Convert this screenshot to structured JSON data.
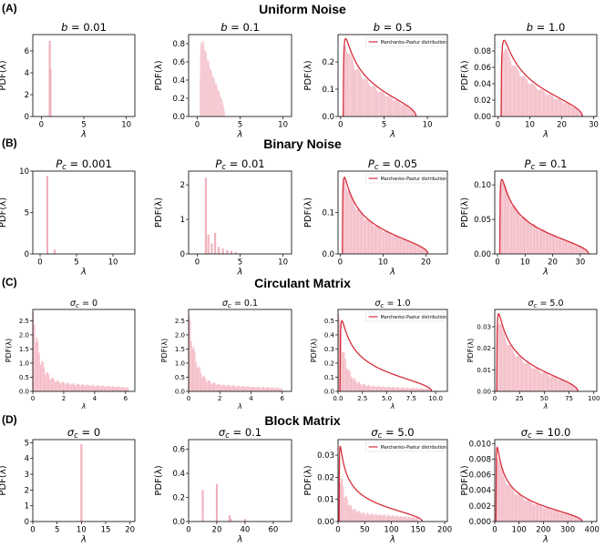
{
  "figure": {
    "rows": [
      {
        "label": "(A)",
        "title": "Uniform Noise"
      },
      {
        "label": "(B)",
        "title": "Binary Noise"
      },
      {
        "label": "(C)",
        "title": "Circulant Matrix"
      },
      {
        "label": "(D)",
        "title": "Block Matrix"
      }
    ]
  },
  "colors": {
    "hist": "#f4b6c2",
    "curve": "#d62d3a",
    "axis": "#000000"
  },
  "chart_data": [
    {
      "type": "bar",
      "row": 0,
      "col": 0,
      "param": "b",
      "value": "0.01",
      "title": "b = 0.01",
      "xlabel": "λ",
      "ylabel": "PDF(λ)",
      "xlim": [
        -1,
        11
      ],
      "ylim": [
        0,
        7.5
      ],
      "xticks": [
        0,
        5,
        10
      ],
      "yticks": [
        0,
        2,
        4,
        6
      ],
      "hist": {
        "kind": "spikes",
        "points": [
          [
            1.0,
            6.9
          ],
          [
            1.08,
            4.3
          ]
        ]
      },
      "mp": null
    },
    {
      "type": "bar",
      "row": 0,
      "col": 1,
      "param": "b",
      "value": "0.1",
      "title": "b = 0.1",
      "xlabel": "λ",
      "ylabel": "PDF(λ)",
      "xlim": [
        -1,
        11
      ],
      "ylim": [
        0,
        0.9
      ],
      "xticks": [
        0,
        5,
        10
      ],
      "yticks": [
        0.0,
        0.2,
        0.4,
        0.6,
        0.8
      ],
      "hist": {
        "kind": "mp",
        "q": 0.5,
        "s2": 1,
        "scale": 1,
        "ymax": 0.86,
        "xmin": 0.3,
        "xmax": 3.2
      },
      "mp": null
    },
    {
      "type": "bar",
      "row": 0,
      "col": 2,
      "param": "b",
      "value": "0.5",
      "title": "b = 0.5",
      "xlabel": "λ",
      "ylabel": "PDF(λ)",
      "xlim": [
        -0.3,
        12.3
      ],
      "ylim": [
        0,
        0.3
      ],
      "xticks": [
        0,
        5,
        10
      ],
      "yticks": [
        0.0,
        0.1,
        0.2
      ],
      "hist": {
        "kind": "mp",
        "q": 0.85,
        "s2": 1,
        "scale": 1,
        "ymax": 0.27,
        "xmin": 0.3,
        "xmax": 8.7
      },
      "mp": {
        "q": 0.85,
        "ymax": 0.285,
        "xmin": 0.3,
        "xmax": 8.7
      },
      "legend": "Marchenko–Pastur distribution"
    },
    {
      "type": "bar",
      "row": 0,
      "col": 3,
      "param": "b",
      "value": "1.0",
      "title": "b = 1.0",
      "xlabel": "λ",
      "ylabel": "PDF(λ)",
      "xlim": [
        -1,
        31
      ],
      "ylim": [
        0,
        0.1
      ],
      "xticks": [
        0,
        10,
        20,
        30
      ],
      "yticks": [
        0.0,
        0.02,
        0.04,
        0.06,
        0.08
      ],
      "hist": {
        "kind": "mp",
        "q": 0.85,
        "s2": 1,
        "scale": 1,
        "ymax": 0.088,
        "xmin": 1.0,
        "xmax": 26.5
      },
      "mp": {
        "q": 0.85,
        "ymax": 0.093,
        "xmin": 1.0,
        "xmax": 26.5
      }
    },
    {
      "type": "bar",
      "row": 1,
      "col": 0,
      "param": "Pc",
      "value": "0.001",
      "title": "Pc = 0.001",
      "xlabel": "λ",
      "ylabel": "PDF(λ)",
      "xlim": [
        -1,
        13
      ],
      "ylim": [
        0,
        10
      ],
      "xticks": [
        0,
        5,
        10
      ],
      "yticks": [
        0,
        5,
        10
      ],
      "hist": {
        "kind": "spikes",
        "points": [
          [
            1.0,
            9.4
          ],
          [
            2.0,
            0.5
          ]
        ]
      },
      "mp": null
    },
    {
      "type": "bar",
      "row": 1,
      "col": 1,
      "param": "Pc",
      "value": "0.01",
      "title": "Pc = 0.01",
      "xlabel": "λ",
      "ylabel": "PDF(λ)",
      "xlim": [
        -1,
        11
      ],
      "ylim": [
        0,
        2.4
      ],
      "xticks": [
        0,
        5,
        10
      ],
      "yticks": [
        0,
        1,
        2
      ],
      "hist": {
        "kind": "spikes",
        "points": [
          [
            1.0,
            2.2
          ],
          [
            1.3,
            0.55
          ],
          [
            1.7,
            0.3
          ],
          [
            2.1,
            0.6
          ],
          [
            2.5,
            0.2
          ],
          [
            3.0,
            0.15
          ],
          [
            3.5,
            0.1
          ],
          [
            4.0,
            0.08
          ],
          [
            4.5,
            0.05
          ]
        ]
      },
      "mp": null
    },
    {
      "type": "bar",
      "row": 1,
      "col": 2,
      "param": "Pc",
      "value": "0.05",
      "title": "Pc = 0.05",
      "xlabel": "λ",
      "ylabel": "PDF(λ)",
      "xlim": [
        -0.5,
        25
      ],
      "ylim": [
        0,
        0.2
      ],
      "xticks": [
        0,
        10,
        20
      ],
      "yticks": [
        0.0,
        0.1
      ],
      "hist": {
        "kind": "mp",
        "q": 0.9,
        "s2": 1,
        "scale": 1,
        "ymax": 0.19,
        "xmin": 0.5,
        "xmax": 20.5
      },
      "mp": {
        "q": 0.9,
        "ymax": 0.185,
        "xmin": 0.5,
        "xmax": 20.5
      },
      "legend": "Marchenko–Pastur distribution"
    },
    {
      "type": "bar",
      "row": 1,
      "col": 3,
      "param": "Pc",
      "value": "0.1",
      "title": "Pc = 0.1",
      "xlabel": "λ",
      "ylabel": "PDF(λ)",
      "xlim": [
        -1,
        36
      ],
      "ylim": [
        0,
        0.12
      ],
      "xticks": [
        0,
        10,
        20,
        30
      ],
      "yticks": [
        0.0,
        0.05,
        0.1
      ],
      "hist": {
        "kind": "mp",
        "q": 0.9,
        "s2": 1,
        "scale": 1,
        "ymax": 0.115,
        "xmin": 0.8,
        "xmax": 33
      },
      "mp": {
        "q": 0.9,
        "ymax": 0.108,
        "xmin": 0.8,
        "xmax": 33
      }
    },
    {
      "type": "bar",
      "row": 2,
      "col": 0,
      "param": "σc",
      "value": "0",
      "title": "σc = 0",
      "xlabel": "λ",
      "ylabel": "PDF(λ)",
      "xlim": [
        0,
        6.6
      ],
      "ylim": [
        0,
        2.9
      ],
      "xticks": [
        0,
        2,
        4,
        6
      ],
      "yticks": [
        0.0,
        0.5,
        1.0,
        1.5,
        2.0,
        2.5
      ],
      "hist": {
        "kind": "decay",
        "ymax": 2.8,
        "xmax": 6.2,
        "tail": 0.12
      },
      "mp": null
    },
    {
      "type": "bar",
      "row": 2,
      "col": 1,
      "param": "σc",
      "value": "0.1",
      "title": "σc = 0.1",
      "xlabel": "λ",
      "ylabel": "PDF(λ)",
      "xlim": [
        0,
        6.6
      ],
      "ylim": [
        0,
        2.9
      ],
      "xticks": [
        0,
        2,
        4,
        6
      ],
      "yticks": [
        0.0,
        0.5,
        1.0,
        1.5,
        2.0,
        2.5
      ],
      "hist": {
        "kind": "decay",
        "ymax": 2.7,
        "xmax": 6.0,
        "tail": 0.1
      },
      "mp": null
    },
    {
      "type": "bar",
      "row": 2,
      "col": 2,
      "param": "σc",
      "value": "1.0",
      "title": "σc = 1.0",
      "xlabel": "λ",
      "ylabel": "PDF(λ)",
      "xlim": [
        0,
        11.2
      ],
      "ylim": [
        0,
        0.58
      ],
      "xticks": [
        0.0,
        2.5,
        5.0,
        7.5,
        10.0
      ],
      "yticks": [
        0.0,
        0.1,
        0.2,
        0.3,
        0.4,
        0.5
      ],
      "hist": {
        "kind": "decay",
        "ymax": 0.55,
        "xmax": 9.5,
        "tail": 0.08
      },
      "mp": {
        "q": 0.95,
        "ymax": 0.5,
        "xmin": 0.2,
        "xmax": 9.6
      },
      "legend": "Marchenko–Pastur distribution"
    },
    {
      "type": "bar",
      "row": 2,
      "col": 3,
      "param": "σc",
      "value": "5.0",
      "title": "σc = 5.0",
      "xlabel": "λ",
      "ylabel": "PDF(λ)",
      "xlim": [
        0,
        103
      ],
      "ylim": [
        0,
        0.038
      ],
      "xticks": [
        0,
        25,
        50,
        75,
        100
      ],
      "yticks": [
        0.0,
        0.01,
        0.02,
        0.03
      ],
      "hist": {
        "kind": "mp",
        "q": 0.9,
        "s2": 1,
        "scale": 1,
        "ymax": 0.035,
        "xmin": 2,
        "xmax": 84
      },
      "mp": {
        "q": 0.9,
        "ymax": 0.036,
        "xmin": 2,
        "xmax": 84
      }
    },
    {
      "type": "bar",
      "row": 3,
      "col": 0,
      "param": "σc",
      "value": "0",
      "title": "σc = 0",
      "xlabel": "λ",
      "ylabel": "PDF(λ)",
      "xlim": [
        0,
        21
      ],
      "ylim": [
        0,
        5.2
      ],
      "xticks": [
        0,
        5,
        10,
        15,
        20
      ],
      "yticks": [
        0,
        1,
        2,
        3,
        4,
        5
      ],
      "hist": {
        "kind": "spikes",
        "points": [
          [
            10,
            4.9
          ]
        ]
      },
      "mp": null
    },
    {
      "type": "bar",
      "row": 3,
      "col": 1,
      "param": "σc",
      "value": "0.1",
      "title": "σc = 0.1",
      "xlabel": "λ",
      "ylabel": "PDF(λ)",
      "xlim": [
        0,
        73
      ],
      "ylim": [
        0,
        0.68
      ],
      "xticks": [
        0,
        20,
        40,
        60
      ],
      "yticks": [
        0.0,
        0.2,
        0.4,
        0.6
      ],
      "hist": {
        "kind": "spikes",
        "points": [
          [
            10,
            0.26
          ],
          [
            20,
            0.31
          ],
          [
            29,
            0.05
          ],
          [
            30,
            0.02
          ],
          [
            40,
            0.02
          ]
        ]
      },
      "mp": null
    },
    {
      "type": "bar",
      "row": 3,
      "col": 2,
      "param": "σc",
      "value": "5.0",
      "title": "σc = 5.0",
      "xlabel": "λ",
      "ylabel": "PDF(λ)",
      "xlim": [
        0,
        205
      ],
      "ylim": [
        0,
        0.037
      ],
      "xticks": [
        0,
        50,
        100,
        150,
        200
      ],
      "yticks": [
        0.0,
        0.01,
        0.02,
        0.03
      ],
      "hist": {
        "kind": "decay",
        "ymax": 0.029,
        "xmax": 150,
        "tail": 0.15
      },
      "mp": {
        "q": 0.9,
        "ymax": 0.034,
        "xmin": 2,
        "xmax": 158
      },
      "legend": "Marchenko–Pastur distribution"
    },
    {
      "type": "bar",
      "row": 3,
      "col": 3,
      "param": "σc",
      "value": "10.0",
      "title": "σc = 10.0",
      "xlabel": "λ",
      "ylabel": "PDF(λ)",
      "xlim": [
        0,
        420
      ],
      "ylim": [
        0,
        0.0105
      ],
      "xticks": [
        0,
        100,
        200,
        300,
        400
      ],
      "yticks": [
        0.0,
        0.002,
        0.004,
        0.006,
        0.008,
        0.01
      ],
      "hist": {
        "kind": "mp",
        "q": 0.9,
        "s2": 1,
        "scale": 1,
        "ymax": 0.0093,
        "xmin": 5,
        "xmax": 360
      },
      "mp": {
        "q": 0.9,
        "ymax": 0.0095,
        "xmin": 5,
        "xmax": 360
      }
    }
  ]
}
